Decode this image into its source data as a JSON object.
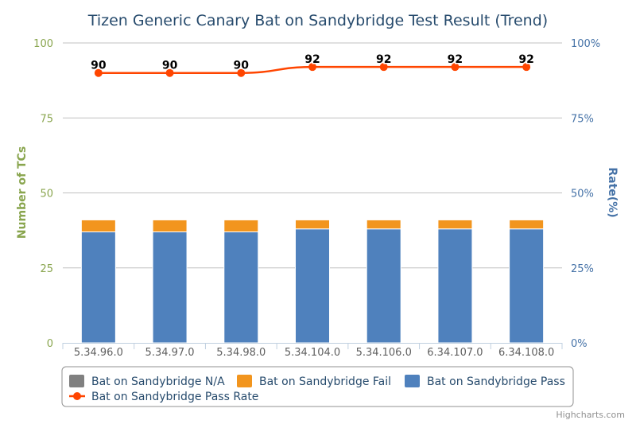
{
  "chart_data": {
    "type": "bar",
    "stacked": true,
    "title": "Tizen Generic Canary Bat on Sandybridge Test Result (Trend)",
    "categories": [
      "5.34.96.0",
      "5.34.97.0",
      "5.34.98.0",
      "5.34.104.0",
      "5.34.106.0",
      "6.34.107.0",
      "6.34.108.0"
    ],
    "y_left": {
      "label": "Number of TCs",
      "range": [
        0,
        100
      ],
      "ticks": [
        "0",
        "25",
        "50",
        "75",
        "100"
      ],
      "tick_values": [
        0,
        25,
        50,
        75,
        100
      ]
    },
    "y_right": {
      "label": "Rate(%)",
      "range": [
        0,
        100
      ],
      "ticks": [
        "0%",
        "25%",
        "50%",
        "75%",
        "100%"
      ],
      "tick_values": [
        0,
        25,
        50,
        75,
        100
      ]
    },
    "grid": true,
    "legend_position": "bottom",
    "series": [
      {
        "name": "Bat on Sandybridge N/A",
        "type": "bar",
        "axis": "left",
        "color": "#808080",
        "values": [
          0,
          0,
          0,
          0,
          0,
          0,
          0
        ]
      },
      {
        "name": "Bat on Sandybridge Fail",
        "type": "bar",
        "axis": "left",
        "color": "#f2951e",
        "values": [
          4,
          4,
          4,
          3,
          3,
          3,
          3
        ]
      },
      {
        "name": "Bat on Sandybridge Pass",
        "type": "bar",
        "axis": "left",
        "color": "#4f81bd",
        "values": [
          37,
          37,
          37,
          38,
          38,
          38,
          38
        ]
      },
      {
        "name": "Bat on Sandybridge Pass Rate",
        "type": "line",
        "axis": "right",
        "color": "#ff4500",
        "values": [
          90,
          90,
          90,
          92,
          92,
          92,
          92
        ],
        "labels": [
          "90",
          "90",
          "90",
          "92",
          "92",
          "92",
          "92"
        ]
      }
    ],
    "credits": "Highcharts.com"
  }
}
